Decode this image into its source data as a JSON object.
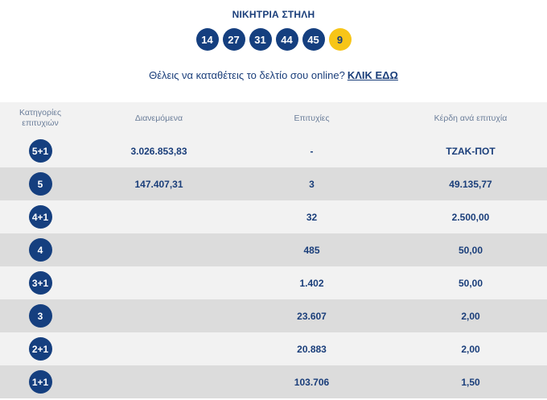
{
  "winning": {
    "title": "ΝΙΚΗΤΡΙΑ ΣΤΗΛΗ",
    "numbers": [
      "14",
      "27",
      "31",
      "44",
      "45"
    ],
    "joker": "9"
  },
  "promo": {
    "text": "Θέλεις να καταθέτεις το δελτίο σου online?",
    "link": "ΚΛΙΚ ΕΔΩ"
  },
  "table": {
    "headers": {
      "category_line1": "Κατηγορίες",
      "category_line2": "επιτυχιών",
      "distributed": "Διανεμόμενα",
      "winners": "Επιτυχίες",
      "prize": "Κέρδη ανά επιτυχία"
    },
    "rows": [
      {
        "category": "5+1",
        "distributed": "3.026.853,83",
        "winners": "-",
        "prize": "ΤΖΑΚ-ΠΟΤ"
      },
      {
        "category": "5",
        "distributed": "147.407,31",
        "winners": "3",
        "prize": "49.135,77"
      },
      {
        "category": "4+1",
        "distributed": "",
        "winners": "32",
        "prize": "2.500,00"
      },
      {
        "category": "4",
        "distributed": "",
        "winners": "485",
        "prize": "50,00"
      },
      {
        "category": "3+1",
        "distributed": "",
        "winners": "1.402",
        "prize": "50,00"
      },
      {
        "category": "3",
        "distributed": "",
        "winners": "23.607",
        "prize": "2,00"
      },
      {
        "category": "2+1",
        "distributed": "",
        "winners": "20.883",
        "prize": "2,00"
      },
      {
        "category": "1+1",
        "distributed": "",
        "winners": "103.706",
        "prize": "1,50"
      }
    ]
  },
  "colors": {
    "navy": "#153f7f",
    "joker_yellow": "#f7c518",
    "row_light": "#f2f2f2",
    "row_dark": "#dcdcdc"
  }
}
